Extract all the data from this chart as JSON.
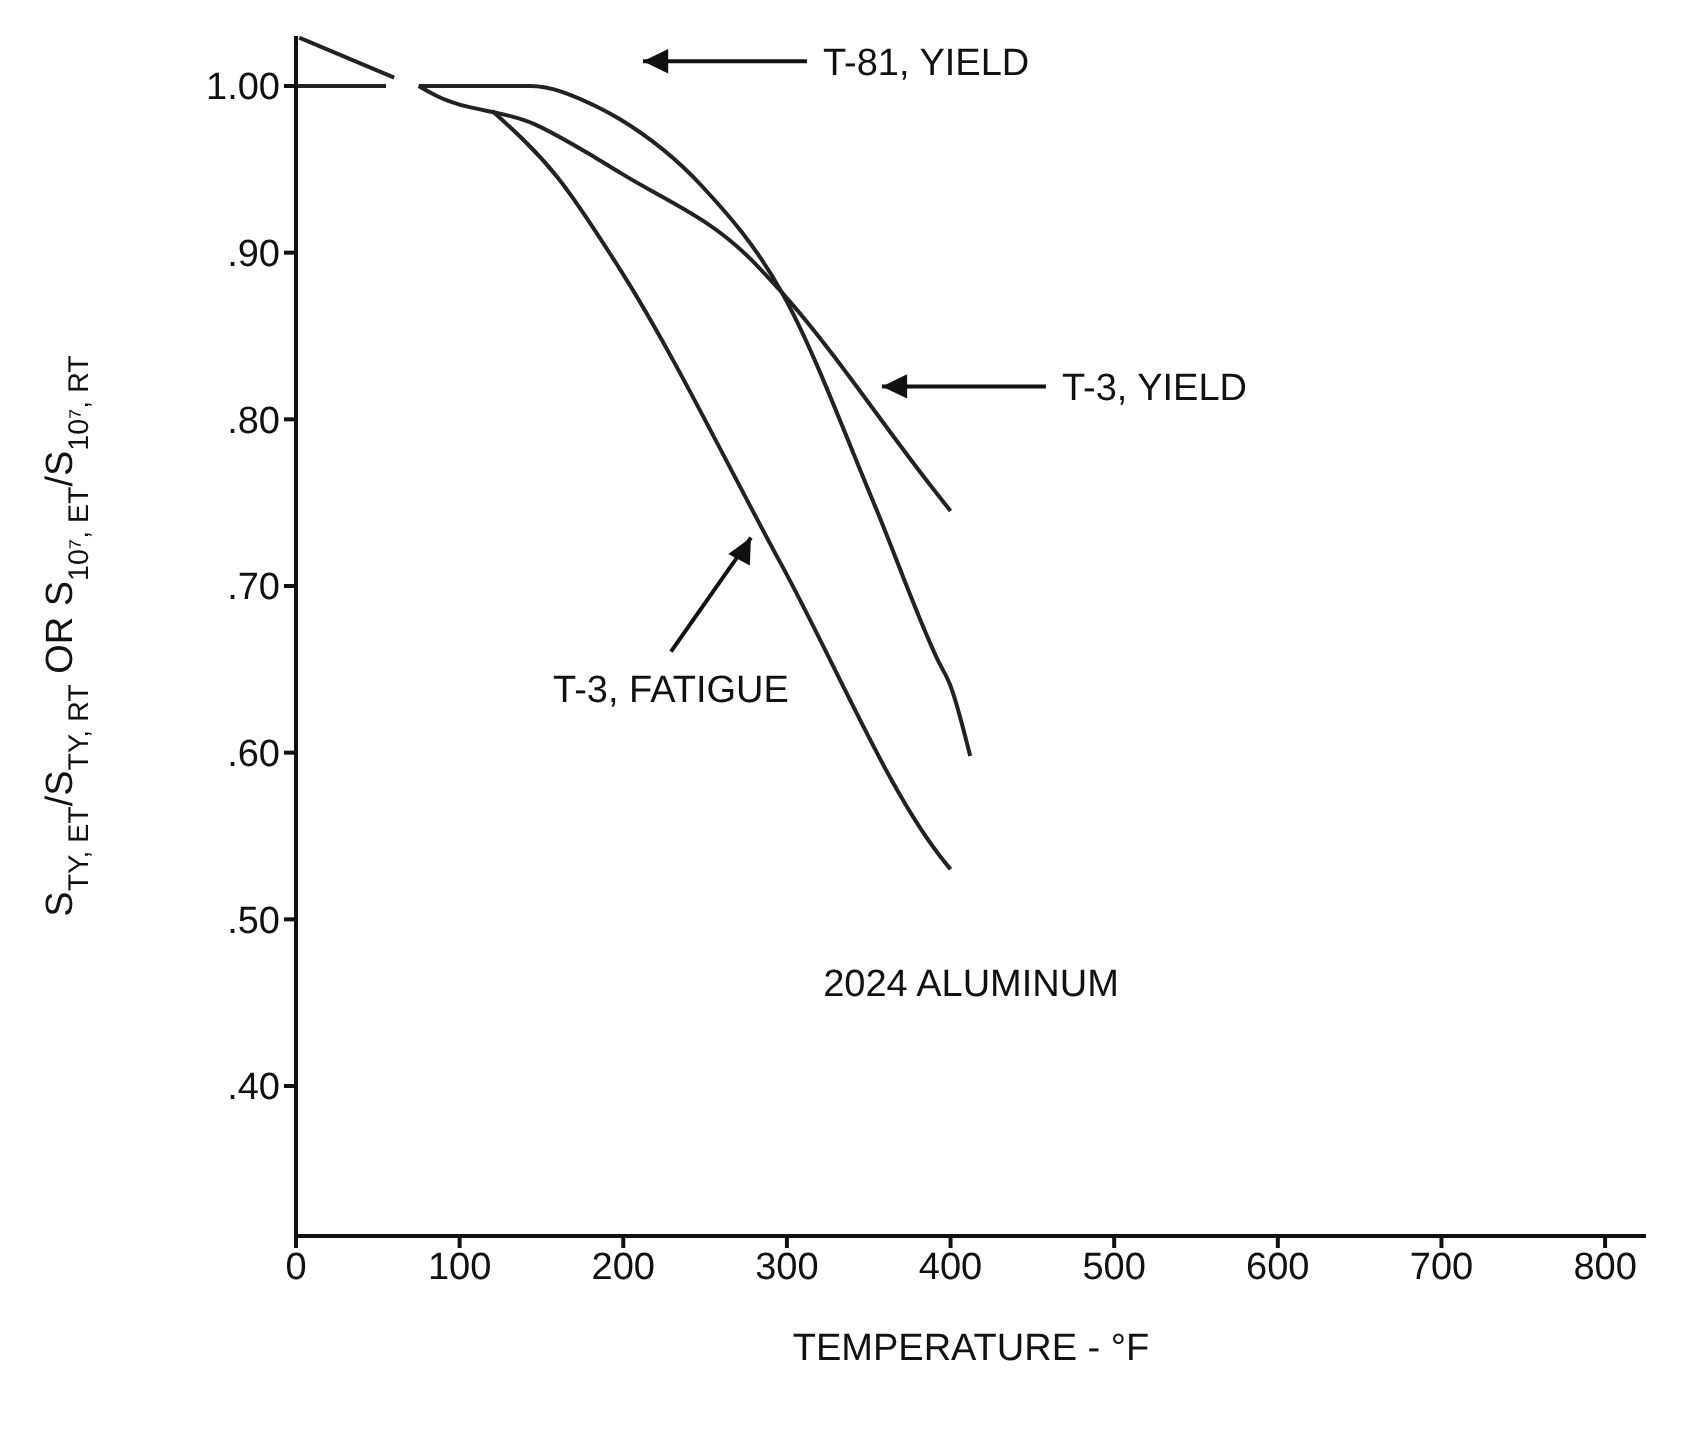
{
  "chart_data": {
    "type": "line",
    "xlabel": "TEMPERATURE - °F",
    "ylabel": "S$_{TY, ET}$/S$_{TY, RT}$   OR   S$_{10⁷, ET}$/S$_{10⁷, RT}$",
    "xlim": [
      0,
      825
    ],
    "xticks": [
      0,
      100,
      200,
      300,
      400,
      500,
      600,
      700,
      800
    ],
    "ylim": [
      0.31,
      1.03
    ],
    "yticks": [
      {
        "value": 0.4,
        "label": ".40"
      },
      {
        "value": 0.5,
        "label": ".50"
      },
      {
        "value": 0.6,
        "label": ".60"
      },
      {
        "value": 0.7,
        "label": ".70"
      },
      {
        "value": 0.8,
        "label": ".80"
      },
      {
        "value": 0.9,
        "label": ".90"
      },
      {
        "value": 1.0,
        "label": "1.00"
      }
    ],
    "marker": "none",
    "line_style": "solid",
    "series": [
      {
        "color": "#222222",
        "x": [
          75,
          80,
          143,
          183,
          198,
          248,
          297,
          353,
          392,
          400,
          412
        ],
        "values": [
          1.0,
          1.0,
          1.0,
          0.988,
          0.98,
          0.94,
          0.876,
          0.75,
          0.656,
          0.64,
          0.598
        ]
      },
      {
        "color": "#222222",
        "x": [
          75,
          84,
          146,
          183,
          198,
          278,
          297,
          388,
          400
        ],
        "values": [
          1.0,
          0.995,
          0.977,
          0.957,
          0.948,
          0.896,
          0.876,
          0.76,
          0.745
        ]
      },
      {
        "color": "#222222",
        "x": [
          120,
          160,
          198,
          296,
          392,
          400
        ],
        "values": [
          0.985,
          0.945,
          0.89,
          0.714,
          0.54,
          0.53
        ]
      },
      {
        "color": "#222222",
        "x": [
          0,
          55
        ],
        "values": [
          1.0,
          1.0
        ]
      },
      {
        "color": "#222222",
        "x": [
          2,
          60
        ],
        "values": [
          1.029,
          1.005
        ]
      }
    ],
    "annotations": [
      "T-81, YIELD",
      "T-3, YIELD",
      "T-3, FATIGUE",
      "2024 ALUMINUM"
    ]
  }
}
